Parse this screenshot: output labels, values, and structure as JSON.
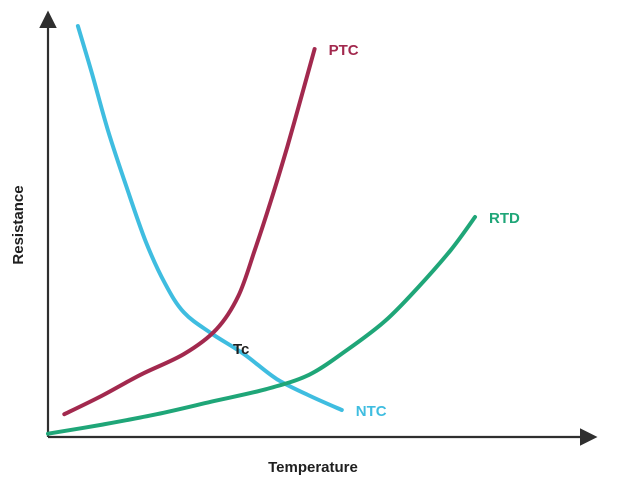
{
  "chart_data": {
    "type": "line",
    "title": "",
    "xlabel": "Temperature",
    "ylabel": "Resistance",
    "xlim": [
      0,
      100
    ],
    "ylim": [
      0,
      100
    ],
    "grid": false,
    "ticks": false,
    "series": [
      {
        "name": "NTC",
        "color": "#3fbde0",
        "points": [
          [
            5.5,
            99
          ],
          [
            8,
            88
          ],
          [
            11,
            74
          ],
          [
            14.5,
            60
          ],
          [
            18,
            47
          ],
          [
            21.5,
            37
          ],
          [
            25,
            30
          ],
          [
            30,
            25
          ],
          [
            36,
            20
          ],
          [
            42,
            14
          ],
          [
            48,
            10
          ],
          [
            54,
            6.5
          ]
        ]
      },
      {
        "name": "PTC",
        "color": "#a2294e",
        "points": [
          [
            3,
            5.5
          ],
          [
            10,
            10
          ],
          [
            17,
            15
          ],
          [
            25,
            20
          ],
          [
            31,
            26
          ],
          [
            35,
            34
          ],
          [
            38,
            45
          ],
          [
            41,
            57
          ],
          [
            44,
            70
          ],
          [
            47,
            84
          ],
          [
            49,
            93.5
          ]
        ]
      },
      {
        "name": "RTD",
        "color": "#1fa678",
        "points": [
          [
            0,
            0.8
          ],
          [
            10,
            3
          ],
          [
            20,
            5.5
          ],
          [
            30,
            8.5
          ],
          [
            40,
            11.5
          ],
          [
            48,
            15
          ],
          [
            55,
            21
          ],
          [
            62,
            28
          ],
          [
            68,
            36
          ],
          [
            74,
            45
          ],
          [
            78.5,
            53
          ]
        ]
      }
    ],
    "annotations": [
      {
        "text": "Tc",
        "x": 34,
        "y": 20
      }
    ]
  }
}
